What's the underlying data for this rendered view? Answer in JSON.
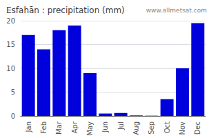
{
  "chart_data": {
    "type": "bar",
    "title": "Esfahān : precipitation (mm)",
    "categories": [
      "Jan",
      "Feb",
      "Mar",
      "Apr",
      "May",
      "Jun",
      "Jul",
      "Aug",
      "Sep",
      "Oct",
      "Nov",
      "Dec"
    ],
    "values": [
      17,
      14,
      18,
      19,
      9,
      0.5,
      0.6,
      0.1,
      0.05,
      3.5,
      10,
      19.5
    ],
    "color": "#0000dd",
    "ylim": [
      0,
      20
    ],
    "yticks": [
      0,
      5,
      10,
      15,
      20
    ],
    "grid": true,
    "annotations": [
      "www.allmetsat.com"
    ]
  }
}
